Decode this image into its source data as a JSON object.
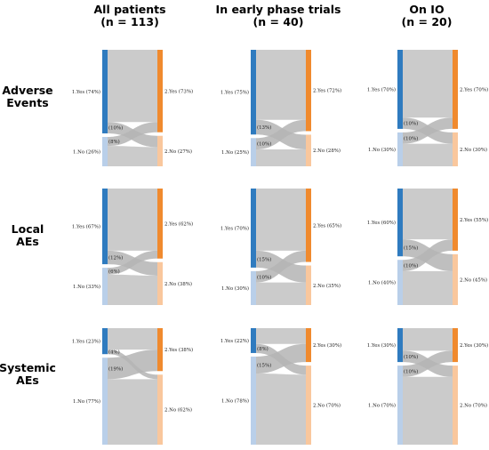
{
  "column_titles": [
    [
      "All patients",
      "(n = 113)"
    ],
    [
      "In early phase trials",
      "(n = 40)"
    ],
    [
      "On IO",
      "(n = 20)"
    ]
  ],
  "row_titles": [
    [
      "Adverse",
      "Events"
    ],
    [
      "Local",
      "AEs"
    ],
    [
      "Systemic",
      "AEs"
    ]
  ],
  "colors": {
    "left_yes": "#2f7bbf",
    "left_no": "#b9cfe9",
    "right_yes": "#f08a2e",
    "right_no": "#f9c79d",
    "flow": "#c8c8c8",
    "flow_cross": "#b4b4b4"
  },
  "chart_data": [
    {
      "type": "sankey",
      "column": "All patients (n = 113)",
      "row": "Adverse Events",
      "left": [
        {
          "label": "1.Yes (74%)",
          "value": 74
        },
        {
          "label": "1.No (26%)",
          "value": 26
        }
      ],
      "right": [
        {
          "label": "2.Yes (73%)",
          "value": 73
        },
        {
          "label": "2.No (27%)",
          "value": 27
        }
      ],
      "cross": [
        {
          "label": "(10%)",
          "value": 10
        },
        {
          "label": "(8%)",
          "value": 8
        }
      ]
    },
    {
      "type": "sankey",
      "column": "In early phase trials (n = 40)",
      "row": "Adverse Events",
      "left": [
        {
          "label": "1.Yes (75%)",
          "value": 75
        },
        {
          "label": "1.No (25%)",
          "value": 25
        }
      ],
      "right": [
        {
          "label": "2.Yes (72%)",
          "value": 72
        },
        {
          "label": "2.No (28%)",
          "value": 28
        }
      ],
      "cross": [
        {
          "label": "(13%)",
          "value": 13
        },
        {
          "label": "(10%)",
          "value": 10
        }
      ]
    },
    {
      "type": "sankey",
      "column": "On IO (n = 20)",
      "row": "Adverse Events",
      "left": [
        {
          "label": "1.Yes (70%)",
          "value": 70
        },
        {
          "label": "1.No (30%)",
          "value": 30
        }
      ],
      "right": [
        {
          "label": "2.Yes (70%)",
          "value": 70
        },
        {
          "label": "2.No (30%)",
          "value": 30
        }
      ],
      "cross": [
        {
          "label": "(10%)",
          "value": 10
        },
        {
          "label": "(10%)",
          "value": 10
        }
      ]
    },
    {
      "type": "sankey",
      "column": "All patients (n = 113)",
      "row": "Local AEs",
      "left": [
        {
          "label": "1.Yes (67%)",
          "value": 67
        },
        {
          "label": "1.No (33%)",
          "value": 33
        }
      ],
      "right": [
        {
          "label": "2.Yes (62%)",
          "value": 62
        },
        {
          "label": "2.No (38%)",
          "value": 38
        }
      ],
      "cross": [
        {
          "label": "(12%)",
          "value": 12
        },
        {
          "label": "(6%)",
          "value": 6
        }
      ]
    },
    {
      "type": "sankey",
      "column": "In early phase trials (n = 40)",
      "row": "Local AEs",
      "left": [
        {
          "label": "1.Yes (70%)",
          "value": 70
        },
        {
          "label": "1.No (30%)",
          "value": 30
        }
      ],
      "right": [
        {
          "label": "2.Yes (65%)",
          "value": 65
        },
        {
          "label": "2.No (35%)",
          "value": 35
        }
      ],
      "cross": [
        {
          "label": "(15%)",
          "value": 15
        },
        {
          "label": "(10%)",
          "value": 10
        }
      ]
    },
    {
      "type": "sankey",
      "column": "On IO (n = 20)",
      "row": "Local AEs",
      "left": [
        {
          "label": "1.Yes (60%)",
          "value": 60
        },
        {
          "label": "1.No (40%)",
          "value": 40
        }
      ],
      "right": [
        {
          "label": "2.Yes (55%)",
          "value": 55
        },
        {
          "label": "2.No (45%)",
          "value": 45
        }
      ],
      "cross": [
        {
          "label": "(15%)",
          "value": 15
        },
        {
          "label": "(10%)",
          "value": 10
        }
      ]
    },
    {
      "type": "sankey",
      "column": "All patients (n = 113)",
      "row": "Systemic AEs",
      "left": [
        {
          "label": "1.Yes (23%)",
          "value": 23
        },
        {
          "label": "1.No (77%)",
          "value": 77
        }
      ],
      "right": [
        {
          "label": "2.Yes (38%)",
          "value": 38
        },
        {
          "label": "2.No (62%)",
          "value": 62
        }
      ],
      "cross": [
        {
          "label": "(4%)",
          "value": 4
        },
        {
          "label": "(19%)",
          "value": 19
        }
      ]
    },
    {
      "type": "sankey",
      "column": "In early phase trials (n = 40)",
      "row": "Systemic AEs",
      "left": [
        {
          "label": "1.Yes (22%)",
          "value": 22
        },
        {
          "label": "1.No (78%)",
          "value": 78
        }
      ],
      "right": [
        {
          "label": "2.Yes (30%)",
          "value": 30
        },
        {
          "label": "2.No (70%)",
          "value": 70
        }
      ],
      "cross": [
        {
          "label": "(8%)",
          "value": 8
        },
        {
          "label": "(15%)",
          "value": 15
        }
      ]
    },
    {
      "type": "sankey",
      "column": "On IO (n = 20)",
      "row": "Systemic AEs",
      "left": [
        {
          "label": "1.Yes (30%)",
          "value": 30
        },
        {
          "label": "1.No (70%)",
          "value": 70
        }
      ],
      "right": [
        {
          "label": "2.Yes (30%)",
          "value": 30
        },
        {
          "label": "2.No (70%)",
          "value": 70
        }
      ],
      "cross": [
        {
          "label": "(10%)",
          "value": 10
        },
        {
          "label": "(10%)",
          "value": 10
        }
      ]
    }
  ]
}
